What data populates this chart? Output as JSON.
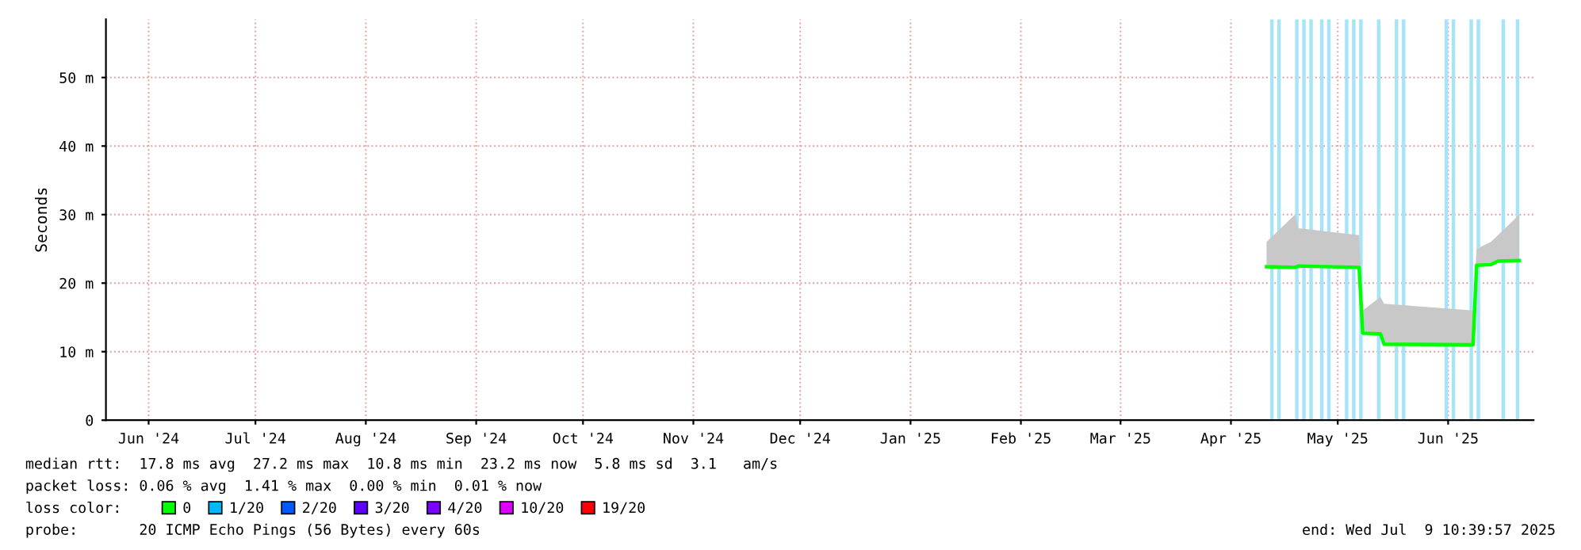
{
  "chart_data": {
    "type": "line",
    "ylabel": "Seconds",
    "xlim": [
      "2024-06-03",
      "2025-07-09"
    ],
    "xticks": [
      {
        "value": "2024-06-15",
        "label": "Jun '24"
      },
      {
        "value": "2024-07-15",
        "label": "Jul '24"
      },
      {
        "value": "2024-08-15",
        "label": "Aug '24"
      },
      {
        "value": "2024-09-15",
        "label": "Sep '24"
      },
      {
        "value": "2024-10-15",
        "label": "Oct '24"
      },
      {
        "value": "2024-11-15",
        "label": "Nov '24"
      },
      {
        "value": "2024-12-15",
        "label": "Dec '24"
      },
      {
        "value": "2025-01-15",
        "label": "Jan '25"
      },
      {
        "value": "2025-02-15",
        "label": "Feb '25"
      },
      {
        "value": "2025-03-15",
        "label": "Mar '25"
      },
      {
        "value": "2025-04-15",
        "label": "Apr '25"
      },
      {
        "value": "2025-05-15",
        "label": "May '25"
      },
      {
        "value": "2025-06-15",
        "label": "Jun '25"
      }
    ],
    "ylim": [
      0,
      58.5
    ],
    "yticks": [
      0,
      {
        "value": 10,
        "label": "10 m"
      },
      {
        "value": 20,
        "label": "20 m"
      },
      {
        "value": 30,
        "label": "30 m"
      },
      {
        "value": 40,
        "label": "40 m"
      },
      {
        "value": 50,
        "label": "50 m"
      }
    ],
    "grid": true,
    "legend": "bottom",
    "legend_title": "loss color:",
    "series": [
      {
        "name": "0",
        "color": "#00ff00",
        "x": [
          "2025-04-25",
          "2025-05-03",
          "2025-05-04",
          "2025-05-21",
          "2025-05-22",
          "2025-05-27",
          "2025-05-28",
          "2025-06-22",
          "2025-06-23",
          "2025-06-27",
          "2025-06-29",
          "2025-07-05"
        ],
        "values": [
          22.4,
          22.3,
          22.5,
          22.3,
          12.7,
          12.6,
          11.1,
          11.0,
          22.6,
          22.7,
          23.2,
          23.3
        ],
        "lower": [
          22.2,
          22.1,
          22.2,
          22.1,
          12.4,
          12.3,
          10.8,
          10.7,
          22.4,
          22.5,
          23.0,
          23.1
        ],
        "upper": [
          26,
          30,
          28,
          27,
          16,
          18,
          17,
          16,
          25,
          26,
          27,
          30
        ]
      },
      {
        "name": "1/20",
        "color": "#00b8ff"
      },
      {
        "name": "2/20",
        "color": "#0059ff"
      },
      {
        "name": "3/20",
        "color": "#5e00ff"
      },
      {
        "name": "4/20",
        "color": "#7e00ff"
      },
      {
        "name": "10/20",
        "color": "#dd00ff"
      },
      {
        "name": "19/20",
        "color": "#ff0000"
      }
    ],
    "bands": [
      {
        "axis": "x",
        "from": "2025-04-26",
        "to": "2025-04-27",
        "color": "#a8e4f8"
      },
      {
        "axis": "x",
        "from": "2025-04-28",
        "to": "2025-04-29",
        "color": "#a8e4f8"
      },
      {
        "axis": "x",
        "from": "2025-05-03",
        "to": "2025-05-04",
        "color": "#a8e4f8"
      },
      {
        "axis": "x",
        "from": "2025-05-05",
        "to": "2025-05-06",
        "color": "#a8e4f8"
      },
      {
        "axis": "x",
        "from": "2025-05-07",
        "to": "2025-05-08",
        "color": "#a8e4f8"
      },
      {
        "axis": "x",
        "from": "2025-05-10",
        "to": "2025-05-11",
        "color": "#a8e4f8"
      },
      {
        "axis": "x",
        "from": "2025-05-12",
        "to": "2025-05-13",
        "color": "#a8e4f8"
      },
      {
        "axis": "x",
        "from": "2025-05-17",
        "to": "2025-05-18",
        "color": "#a8e4f8"
      },
      {
        "axis": "x",
        "from": "2025-05-19",
        "to": "2025-05-20",
        "color": "#a8e4f8"
      },
      {
        "axis": "x",
        "from": "2025-05-21",
        "to": "2025-05-22",
        "color": "#a8e4f8"
      },
      {
        "axis": "x",
        "from": "2025-05-26",
        "to": "2025-05-27",
        "color": "#a8e4f8"
      },
      {
        "axis": "x",
        "from": "2025-05-31",
        "to": "2025-06-01",
        "color": "#a8e4f8"
      },
      {
        "axis": "x",
        "from": "2025-06-02",
        "to": "2025-06-03",
        "color": "#a8e4f8"
      },
      {
        "axis": "x",
        "from": "2025-06-14",
        "to": "2025-06-15",
        "color": "#a8e4f8"
      },
      {
        "axis": "x",
        "from": "2025-06-16",
        "to": "2025-06-17",
        "color": "#a8e4f8"
      },
      {
        "axis": "x",
        "from": "2025-06-21",
        "to": "2025-06-22",
        "color": "#a8e4f8"
      },
      {
        "axis": "x",
        "from": "2025-06-23",
        "to": "2025-06-24",
        "color": "#a8e4f8"
      },
      {
        "axis": "x",
        "from": "2025-06-30",
        "to": "2025-07-01",
        "color": "#a8e4f8"
      },
      {
        "axis": "x",
        "from": "2025-07-04",
        "to": "2025-07-05",
        "color": "#a8e4f8"
      }
    ],
    "annotations": [
      "median rtt:  17.8 ms avg  27.2 ms max  10.8 ms min  23.2 ms now  5.8 ms sd  3.1   am/s",
      "packet loss: 0.06 % avg  1.41 % max  0.00 % min  0.01 % now",
      "probe:       20 ICMP Echo Pings (56 Bytes) every 60s",
      "end: Wed Jul  9 10:39:57 2025"
    ]
  }
}
